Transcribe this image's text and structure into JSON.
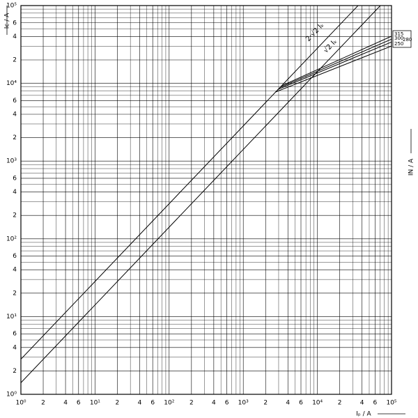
{
  "chart_data": {
    "type": "line",
    "log_scale": true,
    "grid": true,
    "x_label": "Iₚ / A",
    "y_label": "Ic / A",
    "y2_label": "IN / A",
    "xlim": [
      1,
      100000
    ],
    "ylim": [
      1,
      100000
    ],
    "xticks": [
      {
        "value": 1,
        "label": "10⁰"
      },
      2,
      4,
      6,
      {
        "value": 10,
        "label": "10¹"
      },
      {
        "value": 20,
        "label": "2"
      },
      {
        "value": 40,
        "label": "4"
      },
      {
        "value": 60,
        "label": "6"
      },
      {
        "value": 100,
        "label": "10²"
      },
      {
        "value": 200,
        "label": "2"
      },
      {
        "value": 400,
        "label": "4"
      },
      {
        "value": 600,
        "label": "6"
      },
      {
        "value": 1000,
        "label": "10³"
      },
      {
        "value": 2000,
        "label": "2"
      },
      {
        "value": 4000,
        "label": "4"
      },
      {
        "value": 6000,
        "label": "6"
      },
      {
        "value": 10000,
        "label": "10⁴"
      },
      {
        "value": 20000,
        "label": "2"
      },
      {
        "value": 40000,
        "label": "4"
      },
      {
        "value": 60000,
        "label": "6"
      },
      {
        "value": 100000,
        "label": "10⁵"
      }
    ],
    "yticks": [
      {
        "value": 1,
        "label": "10⁰"
      },
      2,
      4,
      6,
      {
        "value": 10,
        "label": "10¹"
      },
      {
        "value": 20,
        "label": "2"
      },
      {
        "value": 40,
        "label": "4"
      },
      {
        "value": 60,
        "label": "6"
      },
      {
        "value": 100,
        "label": "10²"
      },
      {
        "value": 200,
        "label": "2"
      },
      {
        "value": 400,
        "label": "4"
      },
      {
        "value": 600,
        "label": "6"
      },
      {
        "value": 1000,
        "label": "10³"
      },
      {
        "value": 2000,
        "label": "2"
      },
      {
        "value": 4000,
        "label": "4"
      },
      {
        "value": 6000,
        "label": "6"
      },
      {
        "value": 10000,
        "label": "10⁴"
      },
      {
        "value": 20000,
        "label": "2"
      },
      {
        "value": 40000,
        "label": "4"
      },
      {
        "value": 60000,
        "label": "6"
      },
      {
        "value": 100000,
        "label": "10⁵"
      }
    ],
    "series": [
      {
        "name": "2·√2 Iₖ",
        "color": "#000000",
        "x": [
          1,
          35355
        ],
        "values": [
          2.83,
          100000
        ]
      },
      {
        "name": "√2 Iₖ",
        "color": "#000000",
        "x": [
          1,
          70700
        ],
        "values": [
          1.41,
          100000
        ]
      },
      {
        "name": "315",
        "color": "#000000",
        "x": [
          3300,
          100000
        ],
        "values": [
          9300,
          40400
        ]
      },
      {
        "name": "300",
        "color": "#000000",
        "x": [
          3100,
          100000
        ],
        "values": [
          8800,
          37000
        ]
      },
      {
        "name": "280",
        "color": "#000000",
        "x": [
          2900,
          100000
        ],
        "values": [
          8300,
          34000
        ]
      },
      {
        "name": "250",
        "color": "#000000",
        "x": [
          2700,
          100000
        ],
        "values": [
          7700,
          30200
        ]
      }
    ]
  }
}
